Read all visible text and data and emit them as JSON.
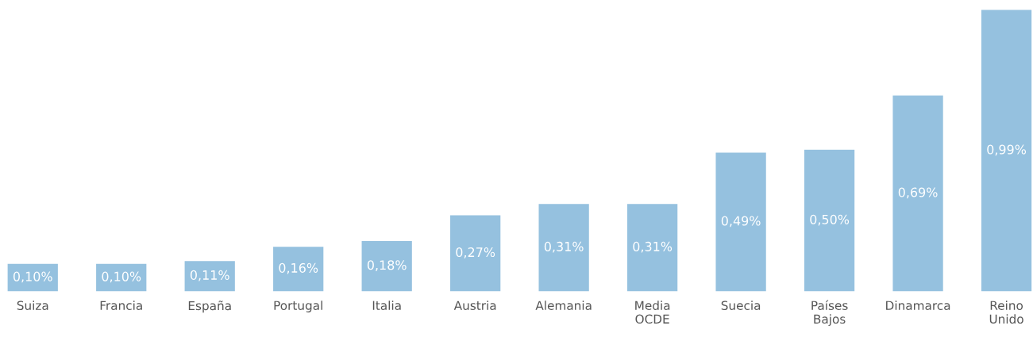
{
  "chart_data": {
    "type": "bar",
    "categories": [
      "Suiza",
      "Francia",
      "España",
      "Portugal",
      "Italia",
      "Austria",
      "Alemania",
      "Media\nOCDE",
      "Suecia",
      "Países\nBajos",
      "Dinamarca",
      "Reino\nUnido"
    ],
    "values": [
      0.1,
      0.1,
      0.11,
      0.16,
      0.18,
      0.27,
      0.31,
      0.31,
      0.49,
      0.5,
      0.69,
      0.99
    ],
    "value_labels": [
      "0,10%",
      "0,10%",
      "0,11%",
      "0,16%",
      "0,18%",
      "0,27%",
      "0,31%",
      "0,31%",
      "0,49%",
      "0,50%",
      "0,69%",
      "0,99%"
    ],
    "color": "#95c1df",
    "tick_labels": "x",
    "grid": false,
    "legend": false
  }
}
